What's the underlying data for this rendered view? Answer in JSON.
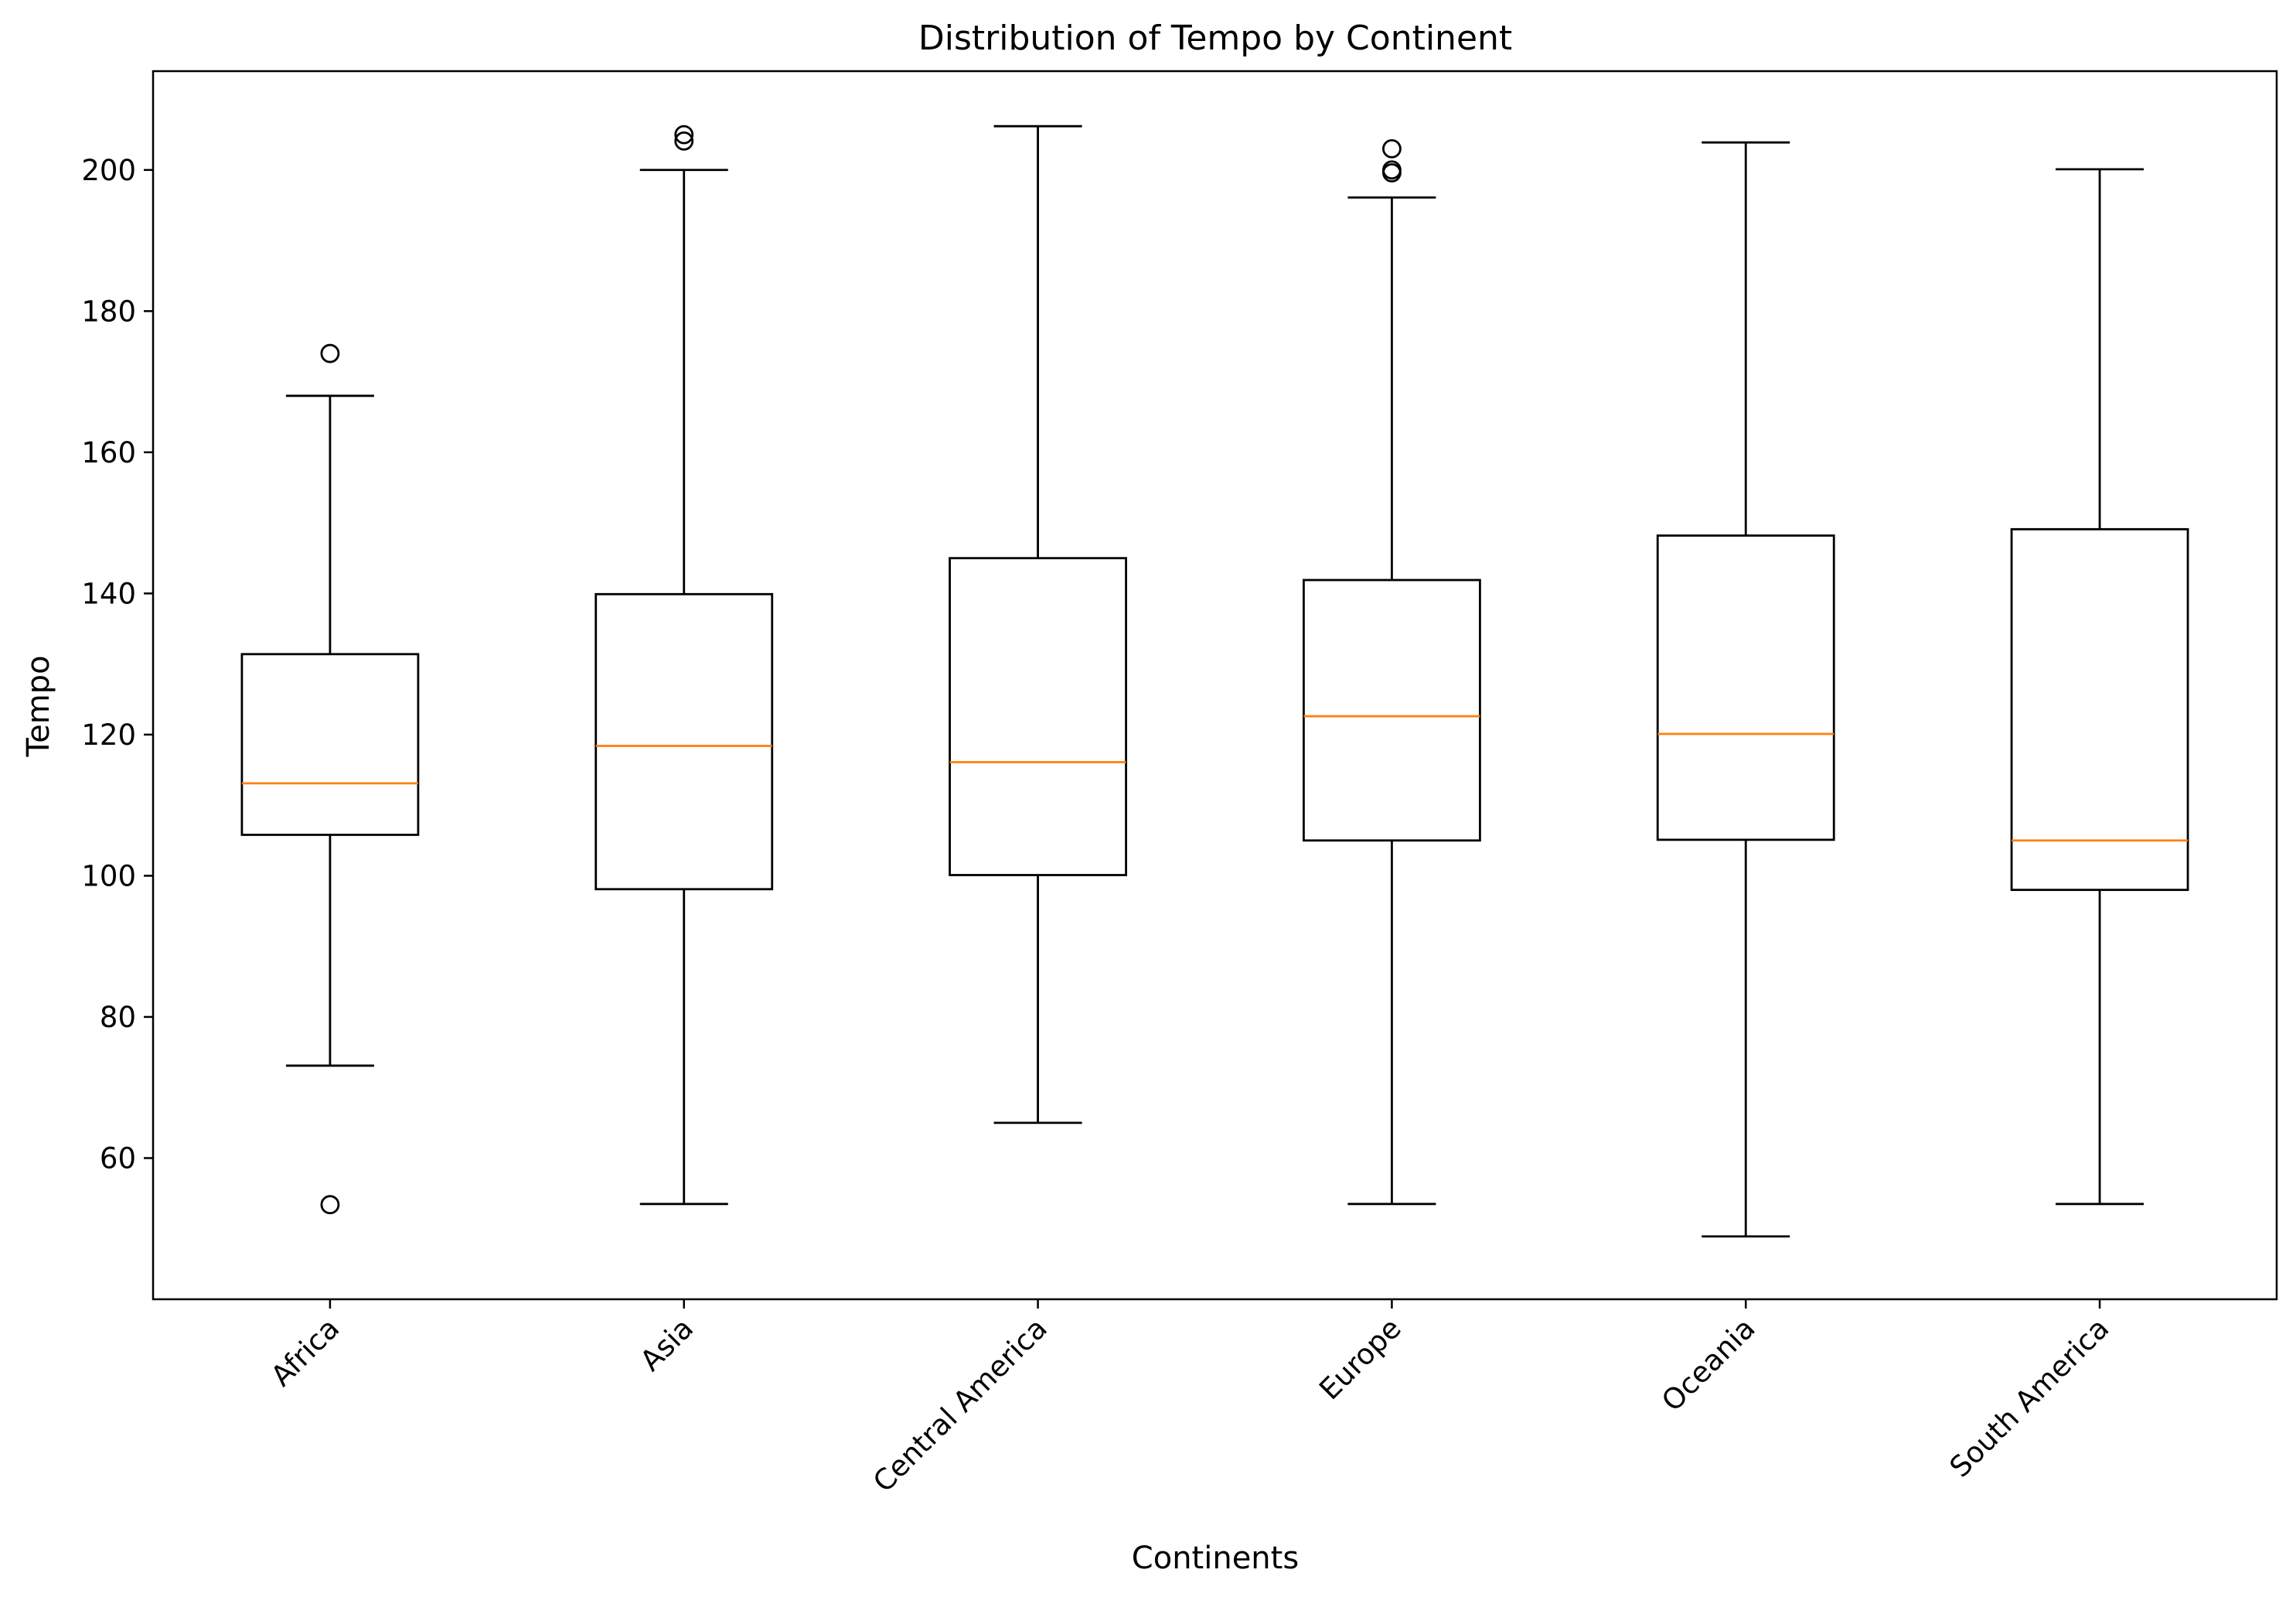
{
  "chart_data": {
    "type": "box",
    "title": "Distribution of Tempo by Continent",
    "xlabel": "Continents",
    "ylabel": "Tempo",
    "ylim": [
      40,
      214
    ],
    "yticks": [
      60,
      80,
      100,
      120,
      140,
      160,
      180,
      200
    ],
    "grid": false,
    "colors": {
      "box": "#000000",
      "median": "#ff7f0e",
      "background": "#ffffff"
    },
    "categories": [
      "Africa",
      "Asia",
      "Central America",
      "Europe",
      "Oceania",
      "South America"
    ],
    "boxes": [
      {
        "category": "Africa",
        "whisker_low": 73.1,
        "q1": 105.8,
        "median": 113.1,
        "q3": 131.4,
        "whisker_high": 168.0,
        "outliers": [
          53.4,
          174.0
        ]
      },
      {
        "category": "Asia",
        "whisker_low": 53.5,
        "q1": 98.1,
        "median": 118.4,
        "q3": 139.9,
        "whisker_high": 200.0,
        "outliers": [
          204.1,
          205.0
        ]
      },
      {
        "category": "Central America",
        "whisker_low": 65.0,
        "q1": 100.1,
        "median": 116.1,
        "q3": 145.0,
        "whisker_high": 206.2,
        "outliers": []
      },
      {
        "category": "Europe",
        "whisker_low": 53.5,
        "q1": 105.0,
        "median": 122.6,
        "q3": 141.9,
        "whisker_high": 196.1,
        "outliers": [
          199.6,
          200.0,
          203.0
        ]
      },
      {
        "category": "Oceania",
        "whisker_low": 48.9,
        "q1": 105.1,
        "median": 120.1,
        "q3": 148.2,
        "whisker_high": 203.9,
        "outliers": []
      },
      {
        "category": "South America",
        "whisker_low": 53.5,
        "q1": 98.0,
        "median": 105.0,
        "q3": 149.1,
        "whisker_high": 200.1,
        "outliers": []
      }
    ]
  }
}
